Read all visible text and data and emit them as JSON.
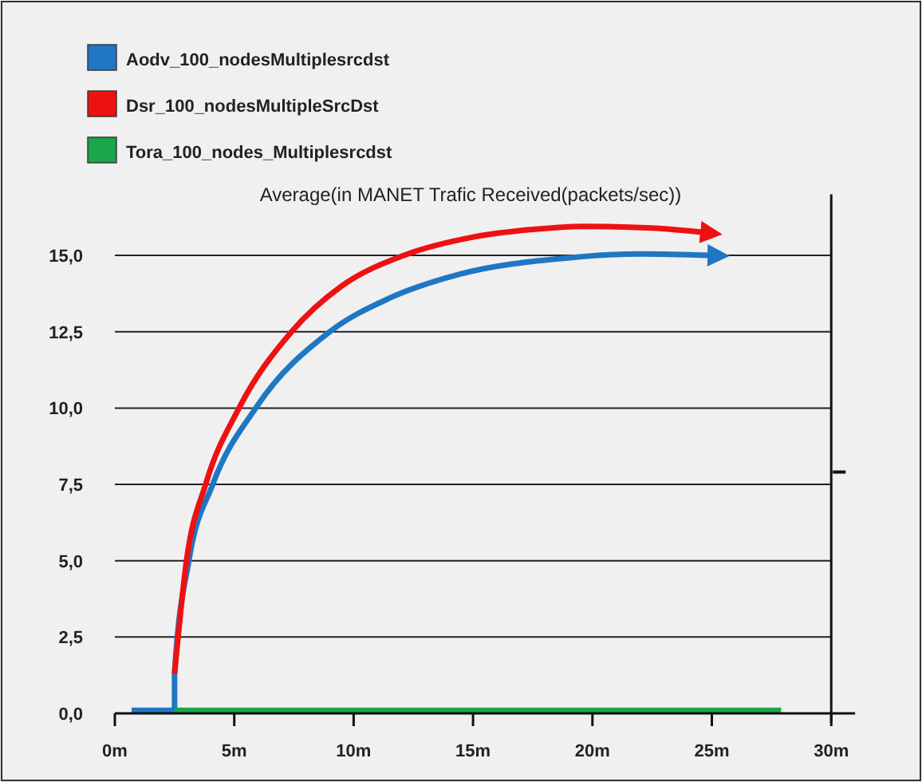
{
  "chart_data": {
    "type": "line",
    "title": "Average(in MANET Trafic Received(packets/sec))",
    "xlim": [
      0,
      31
    ],
    "ylim": [
      0,
      17
    ],
    "xticks": [
      {
        "value": 0,
        "label": "0m"
      },
      {
        "value": 5,
        "label": "5m"
      },
      {
        "value": 10,
        "label": "10m"
      },
      {
        "value": 15,
        "label": "15m"
      },
      {
        "value": 20,
        "label": "20m"
      },
      {
        "value": 25,
        "label": "25m"
      },
      {
        "value": 30,
        "label": "30m"
      }
    ],
    "yticks": [
      {
        "value": 0,
        "label": "0,0"
      },
      {
        "value": 2.5,
        "label": "2,5"
      },
      {
        "value": 5,
        "label": "5,0"
      },
      {
        "value": 7.5,
        "label": "7,5"
      },
      {
        "value": 10,
        "label": "10,0"
      },
      {
        "value": 12.5,
        "label": "12,5"
      },
      {
        "value": 15,
        "label": "15,0"
      }
    ],
    "ref_lines": [
      {
        "axis": "x",
        "value": 30,
        "color": "#111111"
      }
    ],
    "grid": "y",
    "legend": "top left",
    "marker": "none",
    "line_style": "solid",
    "series": [
      {
        "name": "Aodv_100_nodesMultiplesrcdst",
        "color": "#1f77c4",
        "x": [
          0.7,
          2.5,
          2.5,
          3.1,
          4.1,
          5.9,
          9.0,
          11.5,
          14.5,
          18.7,
          22,
          25
        ],
        "values": [
          0.1,
          0.1,
          1.3,
          5,
          7.5,
          10,
          12.5,
          13.6,
          14.4,
          14.9,
          15.05,
          15
        ]
      },
      {
        "name": "Dsr_100_nodesMultipleSrcDst",
        "color": "#ee1111",
        "x": [
          2.5,
          3.0,
          3.8,
          5.2,
          7.4,
          9.5,
          12.1,
          15,
          17.5,
          19.6,
          22.5,
          24.7
        ],
        "values": [
          1.3,
          5,
          7.5,
          10,
          12.5,
          14,
          15,
          15.6,
          15.85,
          15.95,
          15.9,
          15.75
        ]
      },
      {
        "name": "Tora_100_nodes_Multiplesrcdst",
        "color": "#1aa64a",
        "x": [
          2.5,
          27.9
        ],
        "values": [
          0.1,
          0.1
        ]
      }
    ]
  }
}
